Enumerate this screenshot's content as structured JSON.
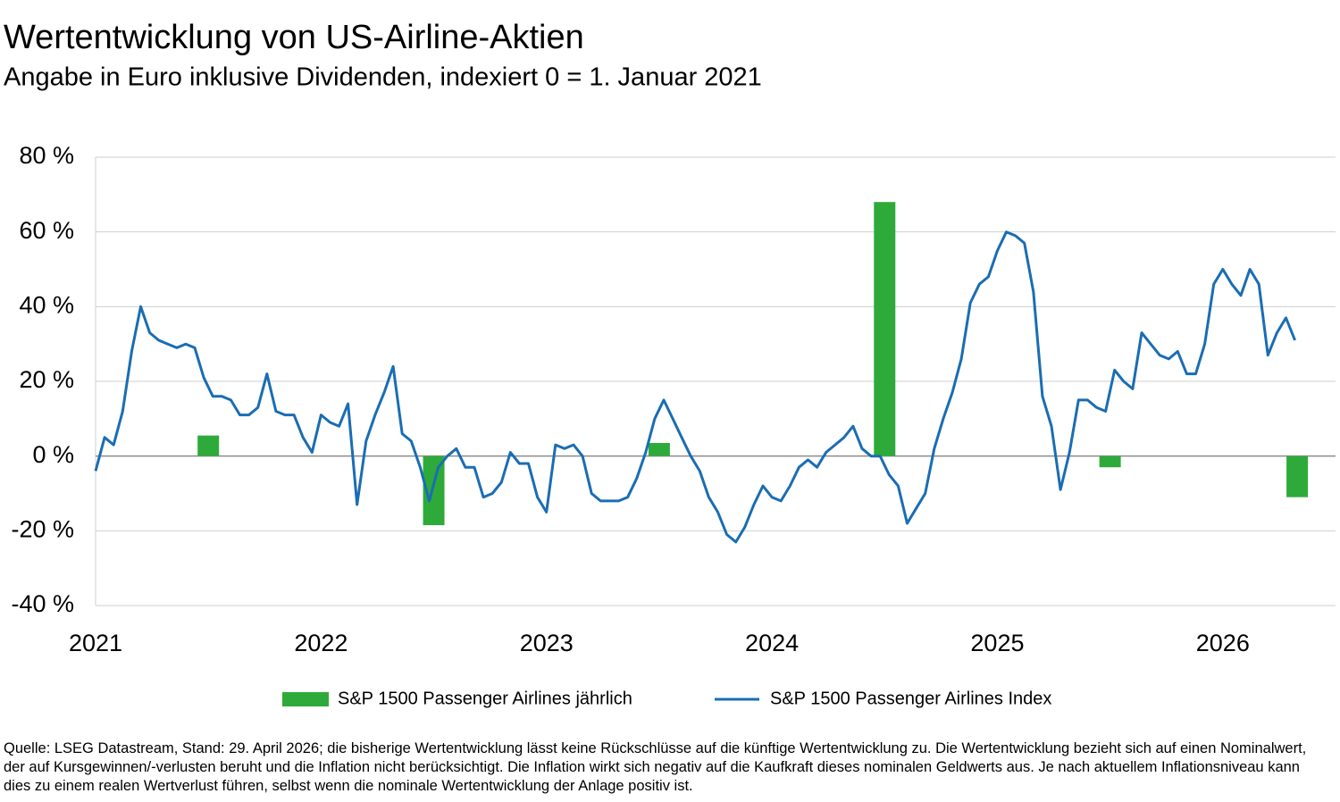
{
  "chart_data": {
    "type": "combo",
    "title": "Wertentwicklung von US-Airline-Aktien",
    "subtitle": "Angabe in Euro inklusive Dividenden, indexiert 0 = 1. Januar 2021",
    "source": "Quelle: LSEG Datastream, Stand: 29. April 2026; die bisherige Wertentwicklung lässt keine Rückschlüsse auf die künftige Wertentwicklung zu. Die Wertentwicklung bezieht sich auf einen Nominalwert, der auf Kursgewinnen/-verlusten beruht und die Inflation nicht berücksichtigt. Die Inflation wirkt sich negativ auf die Kaufkraft dieses nominalen Geldwerts aus. Je nach aktuellem Inflationsniveau kann dies zu einem realen Wertverlust führen, selbst wenn die nominale Wertentwicklung der Anlage positiv ist.",
    "xlim": [
      2021,
      2026.5
    ],
    "xticks": [
      2021,
      2022,
      2023,
      2024,
      2025,
      2026
    ],
    "ylim": [
      -40,
      80
    ],
    "yticks": [
      {
        "value": -40,
        "label": "-40 %"
      },
      {
        "value": -20,
        "label": "-20 %"
      },
      {
        "value": 0,
        "label": "0 %"
      },
      {
        "value": 20,
        "label": "20 %"
      },
      {
        "value": 40,
        "label": "40 %"
      },
      {
        "value": 60,
        "label": "60 %"
      },
      {
        "value": 80,
        "label": "80 %"
      }
    ],
    "grid": true,
    "legend": "bottom",
    "series": [
      {
        "name": "S&P 1500 Passenger Airlines jährlich",
        "type": "bar",
        "color": "#2eaa3a",
        "x": [
          2021.5,
          2022.5,
          2023.5,
          2024.5,
          2025.5,
          2026.33
        ],
        "values": [
          5.5,
          -18.5,
          3.5,
          68,
          -3,
          -11
        ]
      },
      {
        "name": "S&P 1500 Passenger Airlines Index",
        "type": "line",
        "color": "#1a6db3",
        "x": [
          2021,
          2021.04,
          2021.08,
          2021.12,
          2021.16,
          2021.2,
          2021.24,
          2021.28,
          2021.32,
          2021.36,
          2021.4,
          2021.44,
          2021.48,
          2021.52,
          2021.56,
          2021.6,
          2021.64,
          2021.68,
          2021.72,
          2021.76,
          2021.8,
          2021.84,
          2021.88,
          2021.92,
          2021.96,
          2022,
          2022.04,
          2022.08,
          2022.12,
          2022.16,
          2022.2,
          2022.24,
          2022.28,
          2022.32,
          2022.36,
          2022.4,
          2022.44,
          2022.48,
          2022.52,
          2022.56,
          2022.6,
          2022.64,
          2022.68,
          2022.72,
          2022.76,
          2022.8,
          2022.84,
          2022.88,
          2022.92,
          2022.96,
          2023,
          2023.04,
          2023.08,
          2023.12,
          2023.16,
          2023.2,
          2023.24,
          2023.28,
          2023.32,
          2023.36,
          2023.4,
          2023.44,
          2023.48,
          2023.52,
          2023.56,
          2023.6,
          2023.64,
          2023.68,
          2023.72,
          2023.76,
          2023.8,
          2023.84,
          2023.88,
          2023.92,
          2023.96,
          2024,
          2024.04,
          2024.08,
          2024.12,
          2024.16,
          2024.2,
          2024.24,
          2024.28,
          2024.32,
          2024.36,
          2024.4,
          2024.44,
          2024.48,
          2024.52,
          2024.56,
          2024.6,
          2024.64,
          2024.68,
          2024.72,
          2024.76,
          2024.8,
          2024.84,
          2024.88,
          2024.92,
          2024.96,
          2025,
          2025.04,
          2025.08,
          2025.12,
          2025.16,
          2025.2,
          2025.24,
          2025.28,
          2025.32,
          2025.36,
          2025.4,
          2025.44,
          2025.48,
          2025.52,
          2025.56,
          2025.6,
          2025.64,
          2025.68,
          2025.72,
          2025.76,
          2025.8,
          2025.84,
          2025.88,
          2025.92,
          2025.96,
          2026,
          2026.04,
          2026.08,
          2026.12,
          2026.16,
          2026.2,
          2026.24,
          2026.28,
          2026.32
        ],
        "values": [
          -4,
          5,
          3,
          12,
          28,
          40,
          33,
          31,
          30,
          29,
          30,
          29,
          21,
          16,
          16,
          15,
          11,
          11,
          13,
          22,
          12,
          11,
          11,
          5,
          1,
          11,
          9,
          8,
          14,
          -13,
          4,
          11,
          17,
          24,
          6,
          4,
          -3,
          -12,
          -3,
          0,
          2,
          -3,
          -3,
          -11,
          -10,
          -7,
          1,
          -2,
          -2,
          -11,
          -15,
          3,
          2,
          3,
          0,
          -10,
          -12,
          -12,
          -12,
          -11,
          -6,
          1,
          10,
          15,
          10,
          5,
          0,
          -4,
          -11,
          -15,
          -21,
          -23,
          -19,
          -13,
          -8,
          -11,
          -12,
          -8,
          -3,
          -1,
          -3,
          1,
          3,
          5,
          8,
          2,
          0,
          0,
          -5,
          -8,
          -18,
          -14,
          -10,
          2,
          10,
          17,
          26,
          41,
          46,
          48,
          55,
          60,
          59,
          57,
          44,
          16,
          8,
          -9,
          1,
          15,
          15,
          13,
          12,
          23,
          20,
          18,
          33,
          30,
          27,
          26,
          28,
          22,
          22,
          30,
          46,
          50,
          46,
          43,
          50,
          46,
          27,
          33,
          37,
          31
        ]
      }
    ]
  }
}
